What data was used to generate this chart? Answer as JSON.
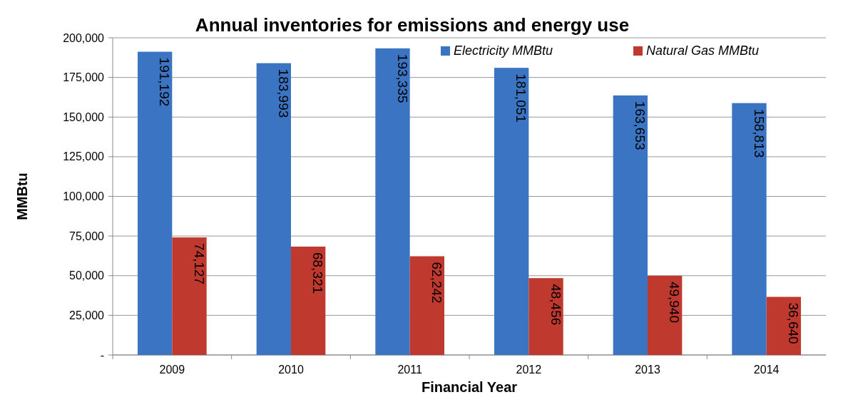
{
  "chart_data": {
    "type": "bar",
    "title": "Annual inventories  for emissions and energy use",
    "xlabel": "Financial Year",
    "ylabel": "MMBtu",
    "categories": [
      "2009",
      "2010",
      "2011",
      "2012",
      "2013",
      "2014"
    ],
    "series": [
      {
        "name": "Electricity MMBtu",
        "color": "#3a74c2",
        "values": [
          191192,
          183993,
          193335,
          181051,
          163653,
          158813
        ],
        "value_labels": [
          "191,192",
          "183,993",
          "193,335",
          "181,051",
          "163,653",
          "158,813"
        ]
      },
      {
        "name": "Natural Gas MMBtu",
        "color": "#c0392f",
        "values": [
          74127,
          68321,
          62242,
          48456,
          49940,
          36640
        ],
        "value_labels": [
          "74,127",
          "68,321",
          "62,242",
          "48,456",
          "49,940",
          "36,640"
        ]
      }
    ],
    "ylim": [
      0,
      200000
    ],
    "yticks": [
      {
        "value": 0,
        "label": "-"
      },
      {
        "value": 25000,
        "label": "25,000"
      },
      {
        "value": 50000,
        "label": "50,000"
      },
      {
        "value": 75000,
        "label": "75,000"
      },
      {
        "value": 100000,
        "label": "100,000"
      },
      {
        "value": 125000,
        "label": "125,000"
      },
      {
        "value": 150000,
        "label": "150,000"
      },
      {
        "value": 175000,
        "label": "175,000"
      },
      {
        "value": 200000,
        "label": "200,000"
      }
    ],
    "grid": "y",
    "legend": "top right"
  }
}
